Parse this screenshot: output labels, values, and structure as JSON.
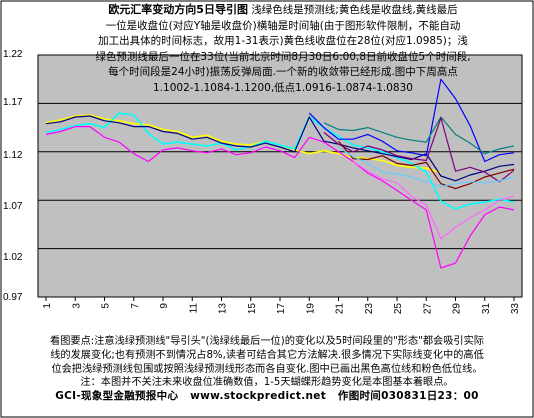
{
  "header": {
    "title": "欧元汇率变动方向5日导引图",
    "line1": "浅绿色线是预测线;黄色线是收盘线,黄线最后",
    "line2": "一位是收盘位(对应Y轴是收盘价)横轴是时间轴(由于图形软件限制，不能自动",
    "line3": "加工出具体的时间标志，故用1-31表示)黄色线收盘位在28位(对应1.0985)；浅",
    "line4": "绿色预测线最后一位在33位(当前北京时间8月30日6:00,8日前收盘位5个时间段,",
    "line5": "每个时间段是24小时)振荡反弹局面.一个新的收敛带已经形成.图中下周高点",
    "line6": "1.1002-1.1084-1.1200,低点1.0916-1.0874-1.0830"
  },
  "footer": {
    "line1": "看图要点:注意浅绿预测线\"导引头\"(浅绿线最后一位)的变化以及5时间段里的\"形态\"都会吸引实际",
    "line2": "线的发展变化;也有预测不到情况占8%,读者可结合其它方法解决.很多情况下实际线变化中的高低",
    "line3": "位会把浅绿预测线包围或按照浅绿预测线形态而各自变化.图中已画出黑色高位线和粉色低位线。",
    "line4": "注：本图并不关注未来收盘位准确数值，1-5天蝴蝶形趋势变化是本图基本着眼点。",
    "brand": "GCI-现象型金融预报中心",
    "url": "www.stockpredict.net",
    "time": "作图时间030831日23：00"
  },
  "colors": {
    "plot_bg": "#c0c0c0",
    "grid": "#000000",
    "predict": "#00ffff",
    "close": "#ffff00",
    "high": "#000080",
    "low": "#ff00ff",
    "s_blue": "#0000ff",
    "s_teal": "#008080",
    "s_purple": "#800080",
    "s_red": "#800000",
    "s_pink": "#ff66ff",
    "s_lightblue": "#66ccff"
  },
  "chart_data": {
    "type": "line",
    "x": [
      1,
      2,
      3,
      4,
      5,
      6,
      7,
      8,
      9,
      10,
      11,
      12,
      13,
      14,
      15,
      16,
      17,
      18,
      19,
      20,
      21,
      22,
      23,
      24,
      25,
      26,
      27,
      28,
      29,
      30,
      31,
      32,
      33
    ],
    "xlabels": [
      "1",
      "3",
      "5",
      "7",
      "9",
      "11",
      "13",
      "15",
      "17",
      "19",
      "21",
      "23",
      "25",
      "27",
      "29",
      "31",
      "33"
    ],
    "yticks": [
      "1.22",
      "1.17",
      "1.12",
      "1.07",
      "1.02",
      "0.97"
    ],
    "ylim": [
      0.97,
      1.22
    ],
    "grid": "horizontal",
    "series": [
      {
        "key": "close",
        "color": "#ffff00",
        "values": [
          1.15,
          1.153,
          1.157,
          1.158,
          1.154,
          1.152,
          1.149,
          1.148,
          1.143,
          1.141,
          1.135,
          1.137,
          1.131,
          1.128,
          1.127,
          1.131,
          1.127,
          1.122,
          1.118,
          1.121,
          1.118,
          1.114,
          1.113,
          1.111,
          1.106,
          1.104,
          1.103,
          1.0985,
          null,
          null,
          null,
          null,
          null
        ]
      },
      {
        "key": "predict",
        "color": "#00ffff",
        "values": [
          1.14,
          1.143,
          1.147,
          1.149,
          1.145,
          1.16,
          1.158,
          1.139,
          1.128,
          1.13,
          1.128,
          1.126,
          1.129,
          1.122,
          1.125,
          1.131,
          1.127,
          1.123,
          1.156,
          1.145,
          1.136,
          1.127,
          1.124,
          1.12,
          1.114,
          1.108,
          1.099,
          1.069,
          1.061,
          1.066,
          1.068,
          1.071,
          1.068
        ]
      },
      {
        "key": "high",
        "color": "#000080",
        "values": [
          1.149,
          1.151,
          1.156,
          1.157,
          1.152,
          1.15,
          1.146,
          1.146,
          1.141,
          1.139,
          1.133,
          1.135,
          1.129,
          1.126,
          1.125,
          1.129,
          1.125,
          1.12,
          1.156,
          1.131,
          1.128,
          1.124,
          1.121,
          1.118,
          1.115,
          1.112,
          1.118,
          1.095,
          1.09,
          1.096,
          1.1,
          1.105,
          1.107
        ]
      },
      {
        "key": "low",
        "color": "#ff00ff",
        "values": [
          1.138,
          1.141,
          1.146,
          1.146,
          1.135,
          1.13,
          1.118,
          1.11,
          1.122,
          1.124,
          1.121,
          1.119,
          1.123,
          1.117,
          1.119,
          1.125,
          1.121,
          1.114,
          1.135,
          1.13,
          1.12,
          1.11,
          1.098,
          1.09,
          1.08,
          1.07,
          1.06,
          1.0,
          1.005,
          1.033,
          1.055,
          1.063,
          1.06
        ]
      },
      {
        "key": "s_blue",
        "color": "#0000ff",
        "values": [
          null,
          null,
          null,
          null,
          null,
          null,
          null,
          null,
          null,
          null,
          null,
          null,
          null,
          null,
          null,
          null,
          null,
          null,
          1.16,
          1.145,
          1.133,
          1.133,
          1.138,
          1.131,
          1.121,
          1.119,
          1.116,
          1.195,
          1.175,
          1.147,
          1.11,
          1.117,
          1.119
        ]
      },
      {
        "key": "s_teal",
        "color": "#008080",
        "values": [
          null,
          null,
          null,
          null,
          null,
          null,
          null,
          null,
          null,
          null,
          null,
          null,
          null,
          null,
          null,
          null,
          null,
          null,
          null,
          1.15,
          1.143,
          1.142,
          1.145,
          1.14,
          1.135,
          1.132,
          1.13,
          1.156,
          1.138,
          1.129,
          1.118,
          1.123,
          1.126
        ]
      },
      {
        "key": "s_purple",
        "color": "#800080",
        "values": [
          null,
          null,
          null,
          null,
          null,
          null,
          null,
          null,
          null,
          null,
          null,
          null,
          null,
          null,
          null,
          null,
          null,
          null,
          null,
          1.14,
          1.128,
          1.12,
          1.126,
          1.122,
          1.116,
          1.113,
          1.111,
          1.155,
          1.1,
          1.104,
          1.099,
          1.089,
          1.101
        ]
      },
      {
        "key": "s_red",
        "color": "#800000",
        "values": [
          null,
          null,
          null,
          null,
          null,
          null,
          null,
          null,
          null,
          null,
          null,
          null,
          null,
          null,
          null,
          null,
          null,
          null,
          null,
          null,
          1.131,
          1.113,
          1.112,
          1.116,
          1.108,
          1.106,
          1.109,
          1.087,
          1.082,
          1.087,
          1.094,
          1.098,
          1.102
        ]
      },
      {
        "key": "s_pink",
        "color": "#ff66ff",
        "values": [
          null,
          null,
          null,
          null,
          null,
          null,
          null,
          null,
          null,
          null,
          null,
          null,
          null,
          null,
          null,
          null,
          null,
          null,
          null,
          null,
          null,
          1.11,
          1.1,
          1.092,
          1.088,
          1.074,
          1.065,
          1.03,
          1.042,
          1.052,
          1.06,
          1.07,
          1.074
        ]
      },
      {
        "key": "s_lightblue",
        "color": "#66ccff",
        "values": [
          null,
          null,
          null,
          null,
          null,
          null,
          null,
          null,
          null,
          null,
          null,
          null,
          null,
          null,
          null,
          null,
          null,
          null,
          null,
          null,
          1.125,
          1.115,
          1.108,
          1.099,
          1.097,
          1.094,
          1.089,
          1.084,
          1.087,
          1.089,
          1.088,
          1.09,
          1.094
        ]
      }
    ]
  }
}
